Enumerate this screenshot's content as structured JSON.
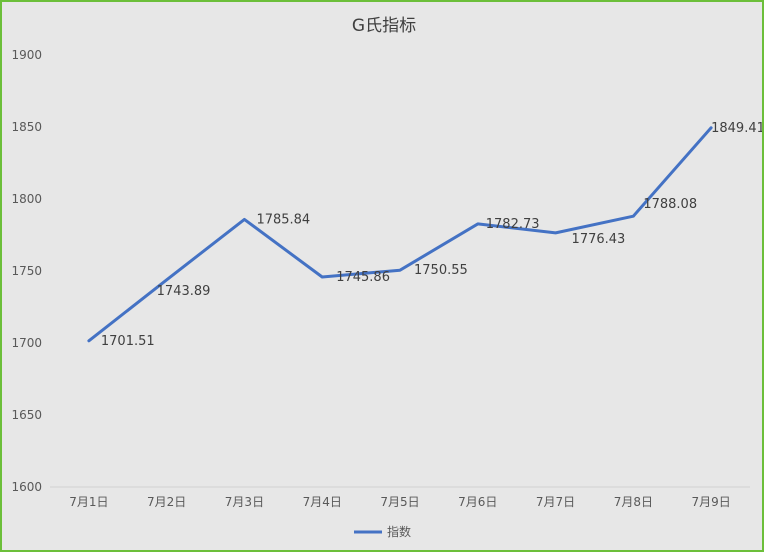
{
  "chart_data": {
    "type": "line",
    "title": "G氏指标",
    "categories": [
      "7月1日",
      "7月2日",
      "7月3日",
      "7月4日",
      "7月5日",
      "7月6日",
      "7月7日",
      "7月8日",
      "7月9日"
    ],
    "series": [
      {
        "name": "指数",
        "values": [
          1701.51,
          1743.89,
          1785.84,
          1745.86,
          1750.55,
          1782.73,
          1776.43,
          1788.08,
          1849.41
        ],
        "color": "#4472c4"
      }
    ],
    "data_labels": [
      "1701.51",
      "1743.89",
      "1785.84",
      "1745.86",
      "1750.55",
      "1782.73",
      "1776.43",
      "1788.08",
      "1849.41"
    ],
    "ylim": [
      1600,
      1900
    ],
    "yticks": [
      1600,
      1650,
      1700,
      1750,
      1800,
      1850,
      1900
    ],
    "grid": false,
    "legend_position": "bottom",
    "colors": {
      "frame_border": "#6cbf3a",
      "background": "#e7e7e7",
      "axis": "#d0d0d0"
    }
  }
}
